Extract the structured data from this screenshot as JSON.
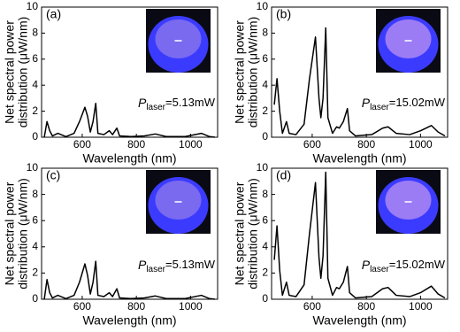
{
  "chart_data": [
    {
      "type": "line",
      "panel_label": "(a)",
      "x_label": "Wavelength (nm)",
      "y_label": [
        "Net spectral power",
        "distribution (μW/nm)"
      ],
      "annotation": {
        "symbol": "P",
        "subscript": "laser",
        "text": "=5.13mW"
      },
      "xlim": [
        450,
        1100
      ],
      "ylim": [
        0,
        10
      ],
      "xticks": [
        600,
        800,
        1000
      ],
      "yticks": [
        0,
        2,
        4,
        6,
        8,
        10
      ],
      "color": "#000000",
      "x": [
        460,
        470,
        480,
        490,
        510,
        540,
        570,
        590,
        610,
        620,
        630,
        640,
        650,
        658,
        680,
        700,
        712,
        728,
        738,
        780,
        830,
        870,
        910,
        980,
        1040,
        1070,
        1090
      ],
      "values": [
        0,
        1.2,
        0.5,
        0.1,
        0.3,
        0.05,
        0.3,
        1.2,
        2.3,
        1.6,
        0.4,
        1.2,
        2.6,
        0.3,
        0.2,
        0.5,
        0.2,
        0.7,
        0.1,
        0.05,
        0.1,
        0.25,
        0.05,
        0.05,
        0.3,
        0.05,
        0
      ]
    },
    {
      "type": "line",
      "panel_label": "(b)",
      "x_label": "Wavelength (nm)",
      "y_label": [
        "Net spectral power",
        "distribution (μW/nm)"
      ],
      "annotation": {
        "symbol": "P",
        "subscript": "laser",
        "text": "=15.02mW"
      },
      "xlim": [
        450,
        1100
      ],
      "ylim": [
        0,
        10
      ],
      "xticks": [
        600,
        800,
        1000
      ],
      "yticks": [
        0,
        2,
        4,
        6,
        8,
        10
      ],
      "color": "#000000",
      "x": [
        460,
        470,
        480,
        490,
        505,
        515,
        540,
        570,
        590,
        612,
        625,
        632,
        640,
        650,
        658,
        675,
        690,
        700,
        715,
        730,
        738,
        760,
        820,
        860,
        880,
        910,
        960,
        1000,
        1040,
        1065,
        1090
      ],
      "values": [
        2.5,
        4.5,
        2,
        0.3,
        1.2,
        0.3,
        0.2,
        1,
        4.5,
        7.7,
        3,
        1.5,
        3,
        8.4,
        1.5,
        0.3,
        0.8,
        0.7,
        1.2,
        2.2,
        0.5,
        0.1,
        0.2,
        0.7,
        0.8,
        0.3,
        0.2,
        0.5,
        0.9,
        0.4,
        0.1
      ]
    },
    {
      "type": "line",
      "panel_label": "(c)",
      "x_label": "Wavelength (nm)",
      "y_label": [
        "Net spectral power",
        "distribution (μW/nm)"
      ],
      "annotation": {
        "symbol": "P",
        "subscript": "laser",
        "text": "=5.13mW"
      },
      "xlim": [
        450,
        1100
      ],
      "ylim": [
        0,
        10
      ],
      "xticks": [
        600,
        800,
        1000
      ],
      "yticks": [
        0,
        2,
        4,
        6,
        8,
        10
      ],
      "color": "#000000",
      "x": [
        460,
        470,
        480,
        490,
        510,
        540,
        570,
        590,
        610,
        620,
        630,
        640,
        650,
        658,
        680,
        700,
        712,
        728,
        738,
        780,
        830,
        870,
        910,
        980,
        1040,
        1070,
        1090
      ],
      "values": [
        0,
        1.5,
        0.5,
        0.1,
        0.3,
        0.05,
        0.3,
        1.3,
        2.7,
        1.8,
        0.4,
        1.3,
        2.9,
        0.3,
        0.2,
        0.5,
        0.2,
        0.8,
        0.1,
        0.05,
        0.1,
        0.25,
        0.05,
        0.05,
        0.3,
        0.05,
        0
      ]
    },
    {
      "type": "line",
      "panel_label": "(d)",
      "x_label": "Wavelength (nm)",
      "y_label": [
        "Net spectral power",
        "distribution (μW/nm)"
      ],
      "annotation": {
        "symbol": "P",
        "subscript": "laser",
        "text": "=15.02mW"
      },
      "xlim": [
        450,
        1100
      ],
      "ylim": [
        0,
        10
      ],
      "xticks": [
        600,
        800,
        1000
      ],
      "yticks": [
        0,
        2,
        4,
        6,
        8,
        10
      ],
      "color": "#000000",
      "x": [
        460,
        470,
        480,
        490,
        505,
        515,
        540,
        570,
        590,
        612,
        625,
        632,
        640,
        650,
        658,
        675,
        690,
        700,
        715,
        730,
        738,
        760,
        820,
        860,
        880,
        910,
        960,
        1000,
        1040,
        1065,
        1090
      ],
      "values": [
        3,
        5.6,
        2.2,
        0.3,
        1.3,
        0.3,
        0.2,
        1.1,
        5,
        8.9,
        3.2,
        1.6,
        3.3,
        9.7,
        1.6,
        0.3,
        0.9,
        0.8,
        1.3,
        2.5,
        0.5,
        0.1,
        0.2,
        0.8,
        0.9,
        0.3,
        0.2,
        0.5,
        1.0,
        0.4,
        0.1
      ]
    }
  ]
}
